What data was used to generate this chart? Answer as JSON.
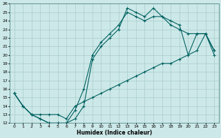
{
  "xlabel": "Humidex (Indice chaleur)",
  "bg_color": "#cce8e8",
  "grid_color": "#aacccc",
  "line_color": "#006060",
  "xlim": [
    -0.5,
    23.5
  ],
  "ylim": [
    12,
    26
  ],
  "xticks": [
    0,
    1,
    2,
    3,
    4,
    5,
    6,
    7,
    8,
    9,
    10,
    11,
    12,
    13,
    14,
    15,
    16,
    17,
    18,
    19,
    20,
    21,
    22,
    23
  ],
  "yticks": [
    12,
    13,
    14,
    15,
    16,
    17,
    18,
    19,
    20,
    21,
    22,
    23,
    24,
    25,
    26
  ],
  "line1_x": [
    0,
    1,
    2,
    3,
    4,
    5,
    6,
    7,
    8,
    9,
    10,
    11,
    12,
    13,
    14,
    15,
    16,
    17,
    18,
    19,
    20,
    21,
    22,
    23
  ],
  "line1_y": [
    15.5,
    14.0,
    13.0,
    12.5,
    12.0,
    12.0,
    12.0,
    12.5,
    14.0,
    19.5,
    21.0,
    22.0,
    23.0,
    25.5,
    25.0,
    24.5,
    25.5,
    24.5,
    24.0,
    23.5,
    20.0,
    22.5,
    22.5,
    20.0
  ],
  "line2_x": [
    0,
    1,
    2,
    3,
    4,
    5,
    6,
    7,
    8,
    9,
    10,
    11,
    12,
    13,
    14,
    15,
    16,
    17,
    18,
    19,
    20,
    21,
    22,
    23
  ],
  "line2_y": [
    15.5,
    14.0,
    13.0,
    12.5,
    12.0,
    12.0,
    12.0,
    13.5,
    16.0,
    20.0,
    21.5,
    22.5,
    23.5,
    25.0,
    24.5,
    24.0,
    24.5,
    24.5,
    23.5,
    23.0,
    22.5,
    22.5,
    22.5,
    20.5
  ],
  "line3_x": [
    0,
    1,
    2,
    3,
    4,
    5,
    6,
    7,
    8,
    9,
    10,
    11,
    12,
    13,
    14,
    15,
    16,
    17,
    18,
    19,
    20,
    21,
    22,
    23
  ],
  "line3_y": [
    15.5,
    14.0,
    13.0,
    13.0,
    13.0,
    13.0,
    12.5,
    14.0,
    14.5,
    15.0,
    15.5,
    16.0,
    16.5,
    17.0,
    17.5,
    18.0,
    18.5,
    19.0,
    19.0,
    19.5,
    20.0,
    20.5,
    22.5,
    20.5
  ]
}
